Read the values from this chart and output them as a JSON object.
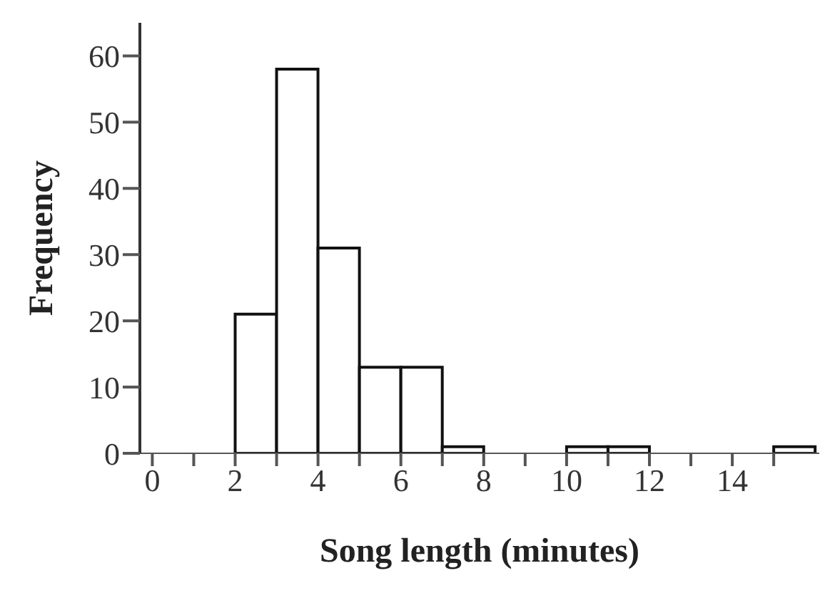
{
  "chart_data": {
    "type": "histogram",
    "xlabel": "Song length (minutes)",
    "ylabel": "Frequency",
    "bins": [
      0,
      1,
      2,
      3,
      4,
      5,
      6,
      7,
      8,
      9,
      10,
      11,
      12,
      13,
      14,
      15,
      16
    ],
    "values": [
      0,
      0,
      21,
      58,
      31,
      13,
      13,
      1,
      0,
      0,
      1,
      1,
      0,
      0,
      0,
      1
    ],
    "color": "#ffffff",
    "xlim": [
      -0.3,
      16.1
    ],
    "xticks": [
      0,
      {
        "value": 1,
        "label": null
      },
      2,
      {
        "value": 3,
        "label": null
      },
      4,
      {
        "value": 5,
        "label": null
      },
      6,
      {
        "value": 7,
        "label": null
      },
      8,
      {
        "value": 9,
        "label": null
      },
      10,
      {
        "value": 11,
        "label": null
      },
      12,
      {
        "value": 13,
        "label": null
      },
      14,
      {
        "value": 15,
        "label": null
      }
    ],
    "ylim": [
      0,
      65
    ],
    "yticks": [
      0,
      10,
      20,
      30,
      40,
      50,
      60
    ],
    "grid": false
  }
}
